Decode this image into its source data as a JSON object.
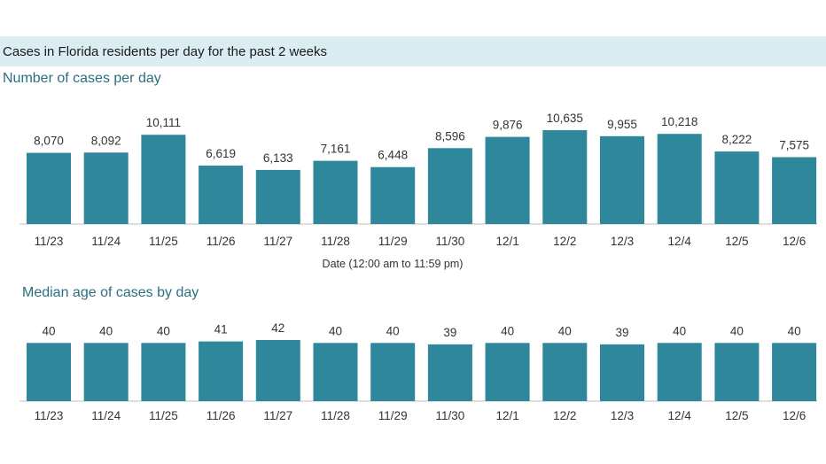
{
  "header": {
    "title": "Cases in Florida residents per day for the past 2 weeks"
  },
  "colors": {
    "bar": "#2e879b",
    "header_bg": "#daedf3",
    "title_text": "#2a6f82"
  },
  "chart_data": [
    {
      "type": "bar",
      "title": "Number of cases per day",
      "xlabel": "Date (12:00 am to 11:59 pm)",
      "ylabel": "",
      "categories": [
        "11/23",
        "11/24",
        "11/25",
        "11/26",
        "11/27",
        "11/28",
        "11/29",
        "11/30",
        "12/1",
        "12/2",
        "12/3",
        "12/4",
        "12/5",
        "12/6"
      ],
      "values": [
        8070,
        8092,
        10111,
        6619,
        6133,
        7161,
        6448,
        8596,
        9876,
        10635,
        9955,
        10218,
        8222,
        7575
      ],
      "value_labels": [
        "8,070",
        "8,092",
        "10,111",
        "6,619",
        "6,133",
        "7,161",
        "6,448",
        "8,596",
        "9,876",
        "10,635",
        "9,955",
        "10,218",
        "8,222",
        "7,575"
      ],
      "ylim": [
        0,
        11000
      ],
      "grid": false
    },
    {
      "type": "bar",
      "title": "Median age of cases by day",
      "xlabel": "",
      "ylabel": "",
      "categories": [
        "11/23",
        "11/24",
        "11/25",
        "11/26",
        "11/27",
        "11/28",
        "11/29",
        "11/30",
        "12/1",
        "12/2",
        "12/3",
        "12/4",
        "12/5",
        "12/6"
      ],
      "values": [
        40,
        40,
        40,
        41,
        42,
        40,
        40,
        39,
        40,
        40,
        39,
        40,
        40,
        40
      ],
      "value_labels": [
        "40",
        "40",
        "40",
        "41",
        "42",
        "40",
        "40",
        "39",
        "40",
        "40",
        "39",
        "40",
        "40",
        "40"
      ],
      "ylim": [
        0,
        43
      ],
      "grid": false
    }
  ]
}
